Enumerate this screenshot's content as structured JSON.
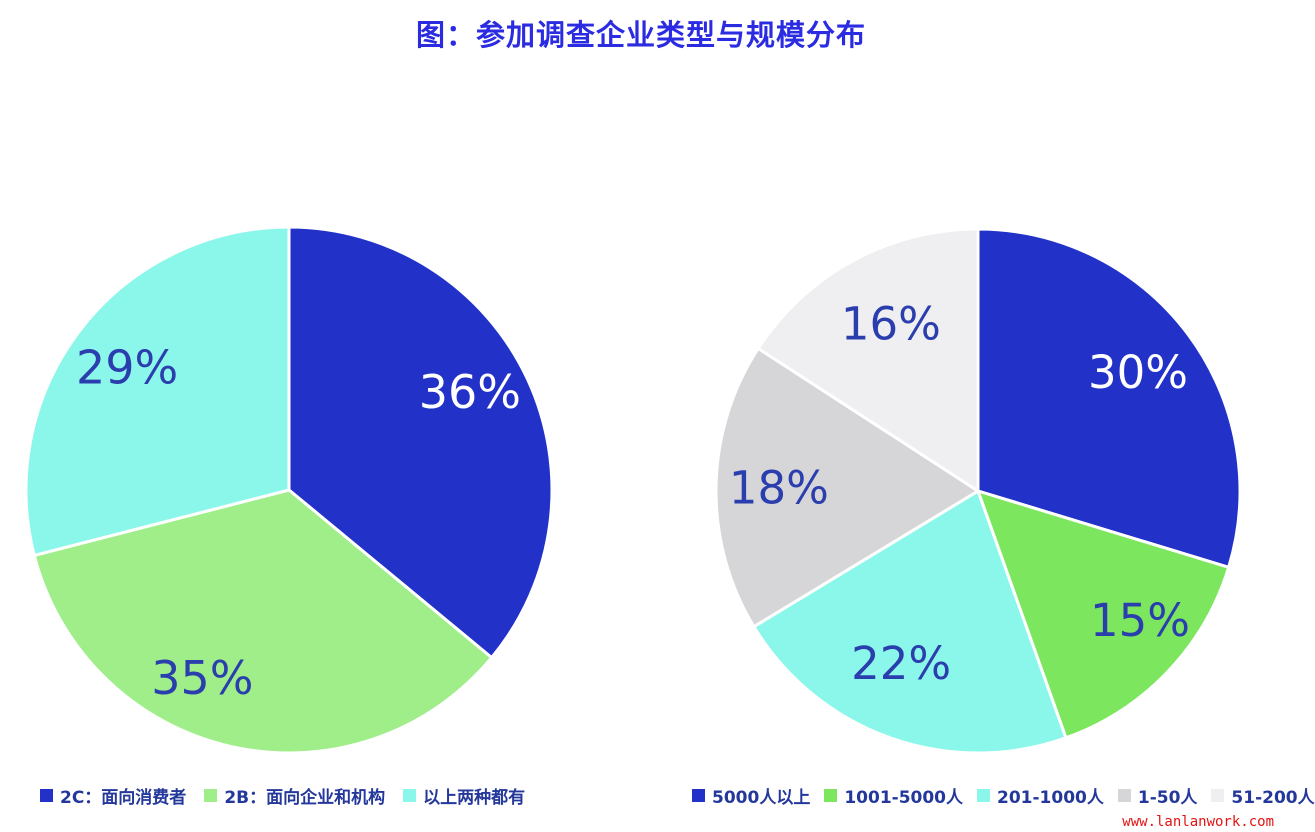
{
  "page": {
    "title": "图：参加调查企业类型与规模分布",
    "watermark": "www.lanlanwork.com"
  },
  "colors": {
    "background": "#ffffff",
    "title": "#2b2be2",
    "legend_text": "#24389b",
    "percent_label_blue": "#2b3ead",
    "percent_label_white": "#ffffff",
    "separator": "#ffffff",
    "watermark": "#e51313"
  },
  "chart_data": [
    {
      "type": "pie",
      "id": "company-type-distribution",
      "categories": [
        "2C：面向消费者",
        "2B：面向企业和机构",
        "以上两种都有"
      ],
      "values": [
        36,
        35,
        29
      ],
      "unit": "%",
      "labels": [
        "36%",
        "35%",
        "29%"
      ],
      "slice_colors": [
        "#2231c8",
        "#9fee8a",
        "#8bf7ea"
      ],
      "label_colors": [
        "#ffffff",
        "#2b3ead",
        "#2b3ead"
      ],
      "start_angle_deg": 0,
      "direction": "clockwise",
      "legend_position": "bottom"
    },
    {
      "type": "pie",
      "id": "company-size-distribution",
      "categories": [
        "5000人以上",
        "1001-5000人",
        "201-1000人",
        "1-50人",
        "51-200人"
      ],
      "values": [
        30,
        15,
        22,
        18,
        16
      ],
      "unit": "%",
      "labels": [
        "30%",
        "15%",
        "22%",
        "18%",
        "16%"
      ],
      "slice_colors": [
        "#2231c8",
        "#7de65f",
        "#8bf7ea",
        "#d6d6d8",
        "#efeff1"
      ],
      "label_colors": [
        "#ffffff",
        "#2b3ead",
        "#2b3ead",
        "#2b3ead",
        "#2b3ead"
      ],
      "start_angle_deg": 0,
      "direction": "clockwise",
      "legend_position": "bottom"
    }
  ]
}
